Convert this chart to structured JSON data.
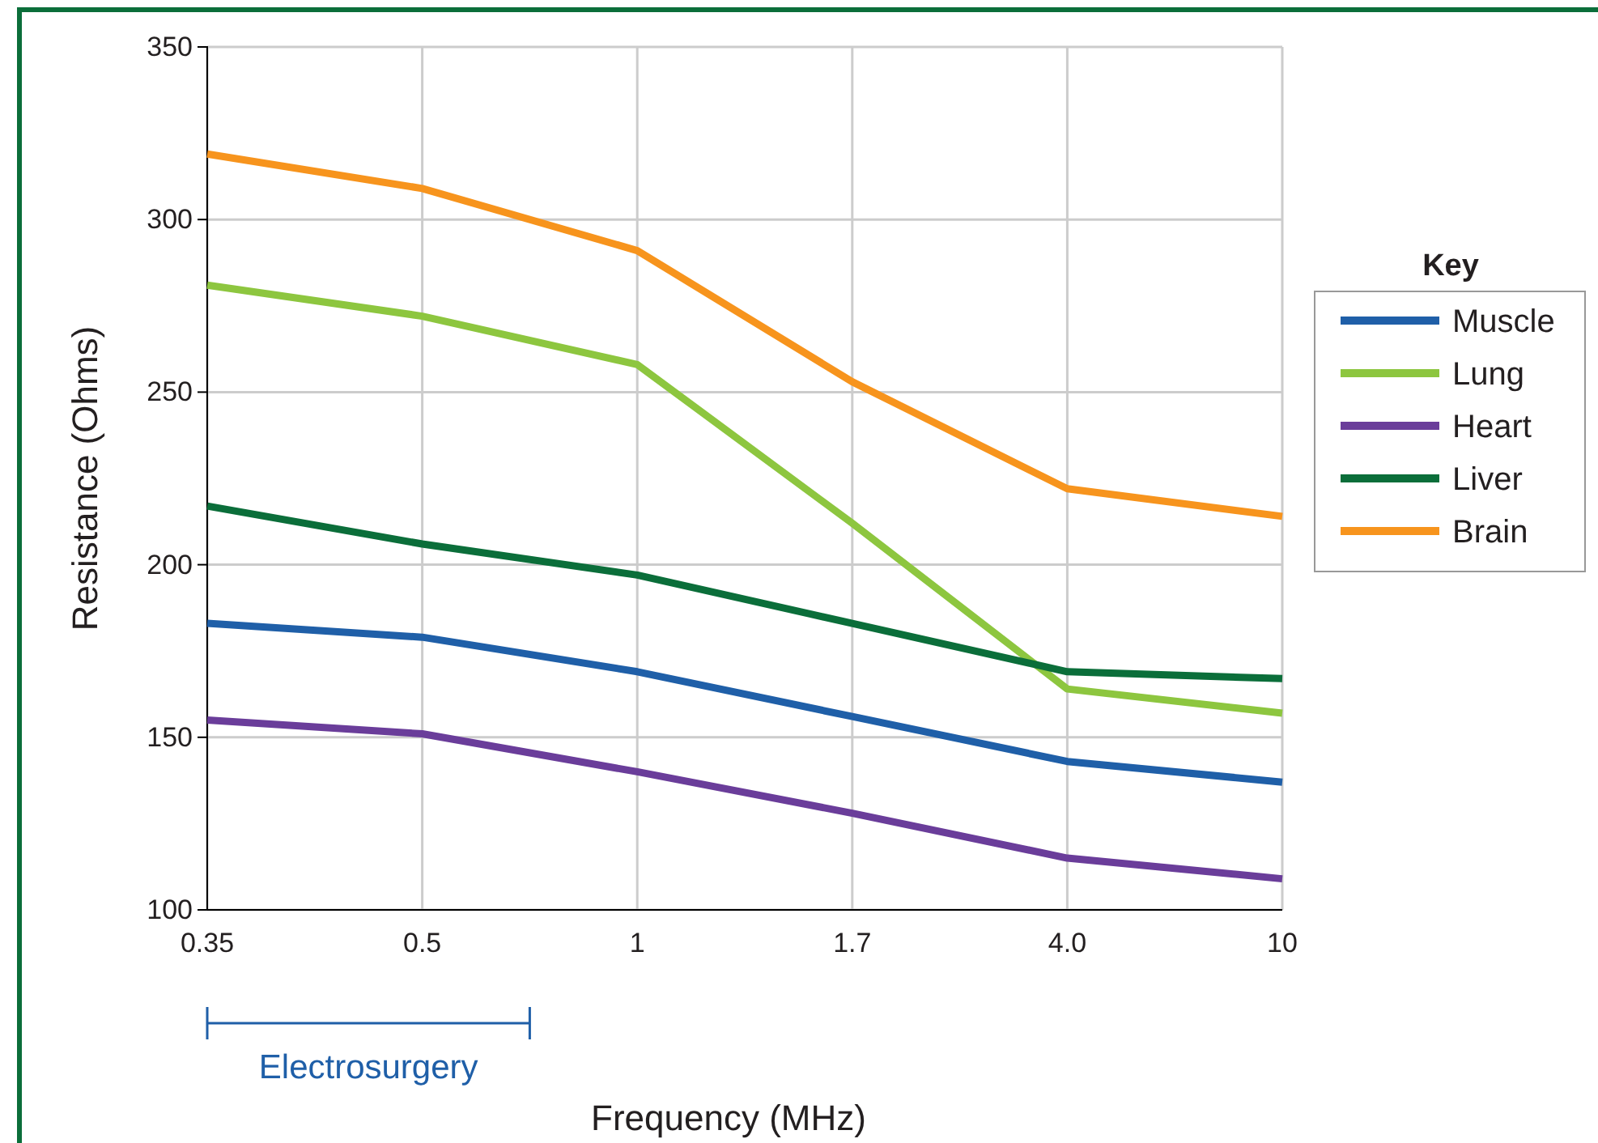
{
  "chart_data": {
    "type": "line",
    "xlabel": "Frequency (MHz)",
    "ylabel": "Resistance (Ohms)",
    "legend_title": "Key",
    "legend": "right",
    "grid": true,
    "categories": [
      "0.35",
      "0.5",
      "1",
      "1.7",
      "4.0",
      "10"
    ],
    "ylim": [
      100,
      350
    ],
    "yticks": [
      100,
      150,
      200,
      250,
      300,
      350
    ],
    "series": [
      {
        "name": "Muscle",
        "color": "#1f5fa8",
        "values": [
          183,
          179,
          169,
          156,
          143,
          137
        ]
      },
      {
        "name": "Lung",
        "color": "#8dc63f",
        "values": [
          281,
          272,
          258,
          212,
          164,
          157
        ]
      },
      {
        "name": "Heart",
        "color": "#6a3d9a",
        "values": [
          155,
          151,
          140,
          128,
          115,
          109
        ]
      },
      {
        "name": "Liver",
        "color": "#0b6e3a",
        "values": [
          217,
          206,
          197,
          183,
          169,
          167
        ]
      },
      {
        "name": "Brain",
        "color": "#f7941d",
        "values": [
          319,
          309,
          291,
          253,
          222,
          214
        ]
      }
    ],
    "annotations": [
      "Electrosurgery"
    ]
  }
}
